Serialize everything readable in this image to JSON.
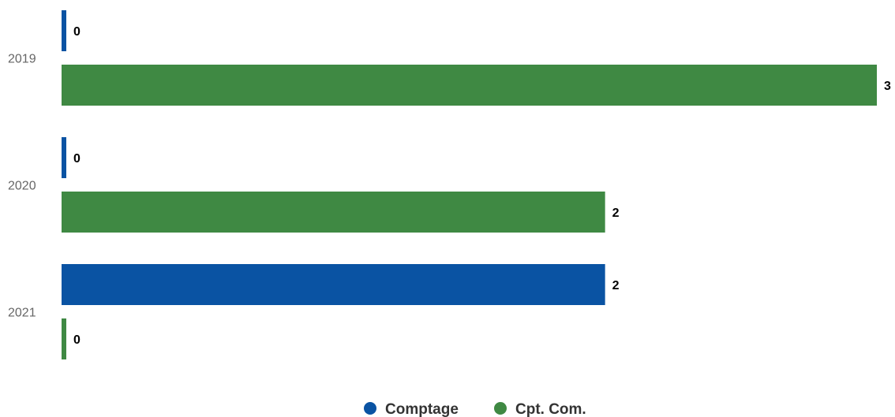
{
  "chart_data": {
    "type": "bar",
    "orientation": "horizontal",
    "categories": [
      "2019",
      "2020",
      "2021"
    ],
    "series": [
      {
        "name": "Comptage",
        "values": [
          0,
          0,
          2
        ],
        "color": "#0a53a3"
      },
      {
        "name": "Cpt. Com.",
        "values": [
          3,
          2,
          0
        ],
        "color": "#3f8943"
      }
    ],
    "xlim": [
      0,
      3
    ],
    "grid": false,
    "data_labels": true,
    "legend_position": "bottom-center",
    "title": "",
    "xlabel": "",
    "ylabel": ""
  }
}
